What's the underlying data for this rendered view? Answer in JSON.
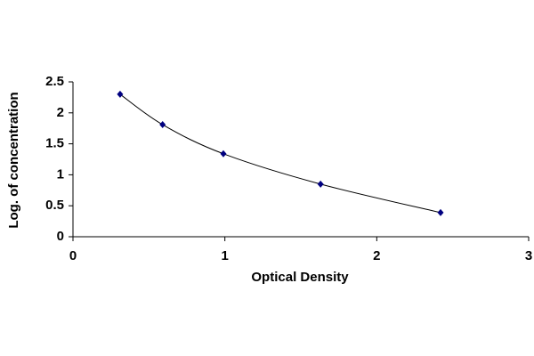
{
  "chart_data": {
    "type": "scatter",
    "x_label": "Optical Density",
    "y_label": "Log. of concentration",
    "x": [
      0.31,
      0.59,
      0.99,
      1.63,
      2.42
    ],
    "values": [
      2.3,
      1.81,
      1.34,
      0.85,
      0.39
    ],
    "color": "#000080",
    "line_color": "#000000",
    "smooth_line": true,
    "xlim": [
      0,
      3
    ],
    "xticks": [
      0,
      1,
      2,
      3
    ],
    "ylim": [
      0,
      2.5
    ],
    "yticks": [
      0,
      0.5,
      1,
      1.5,
      2,
      2.5
    ],
    "grid": false
  }
}
